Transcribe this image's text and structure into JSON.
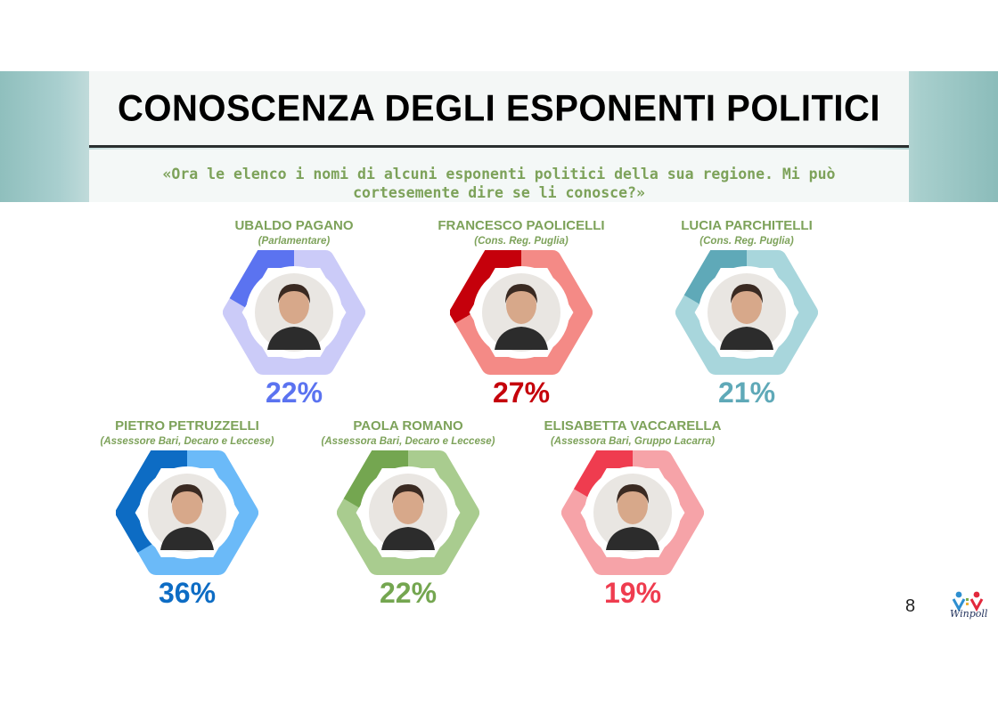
{
  "header": {
    "title": "CONOSCENZA DEGLI ESPONENTI POLITICI",
    "subtitle": "«Ora le elenco i nomi di alcuni esponenti politici della sua regione. Mi può cortesemente dire se li conosce?»"
  },
  "page_number": "8",
  "logo_text": "Winpoll",
  "chart_data": {
    "type": "pie",
    "unit": "%",
    "items": [
      {
        "name": "UBALDO PAGANO",
        "role": "(Parlamentare)",
        "value": 22,
        "label": "22%",
        "color": "#5b73f0",
        "track": "#cbcbf8",
        "avatar": "ubaldo-pagano-photo"
      },
      {
        "name": "FRANCESCO PAOLICELLI",
        "role": "(Cons. Reg. Puglia)",
        "value": 27,
        "label": "27%",
        "color": "#c5000b",
        "track": "#f48a86",
        "avatar": "francesco-paolicelli-photo"
      },
      {
        "name": "LUCIA PARCHITELLI",
        "role": "(Cons. Reg. Puglia)",
        "value": 21,
        "label": "21%",
        "color": "#5fa9b8",
        "track": "#a8d6dc",
        "avatar": "lucia-parchitelli-photo"
      },
      {
        "name": "PIETRO PETRUZZELLI",
        "role": "(Assessore Bari, Decaro e Leccese)",
        "value": 36,
        "label": "36%",
        "color": "#0d6cc4",
        "track": "#6bbaf8",
        "avatar": "pietro-petruzzelli-photo"
      },
      {
        "name": "PAOLA ROMANO",
        "role": "(Assessora Bari, Decaro e Leccese)",
        "value": 22,
        "label": "22%",
        "color": "#74a650",
        "track": "#a9cc8f",
        "avatar": "paola-romano-photo"
      },
      {
        "name": "ELISABETTA VACCARELLA",
        "role": "(Assessora Bari, Gruppo Lacarra)",
        "value": 19,
        "label": "19%",
        "color": "#ef3c4f",
        "track": "#f6a3a8",
        "avatar": "elisabetta-vaccarella-photo"
      }
    ]
  }
}
